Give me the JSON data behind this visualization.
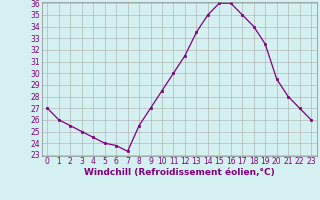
{
  "x": [
    0,
    1,
    2,
    3,
    4,
    5,
    6,
    7,
    8,
    9,
    10,
    11,
    12,
    13,
    14,
    15,
    16,
    17,
    18,
    19,
    20,
    21,
    22,
    23
  ],
  "y": [
    27.0,
    26.0,
    25.5,
    25.0,
    24.5,
    24.0,
    23.8,
    23.3,
    25.5,
    27.0,
    28.5,
    30.0,
    31.5,
    33.5,
    35.0,
    36.0,
    36.0,
    35.0,
    34.0,
    32.5,
    29.5,
    28.0,
    27.0,
    26.0
  ],
  "line_color": "#800080",
  "marker": "s",
  "marker_size": 2,
  "bg_color": "#d5f0f0",
  "grid_color": "#aaaaaa",
  "xlabel": "Windchill (Refroidissement éolien,°C)",
  "xlabel_color": "#800080",
  "tick_color": "#800080",
  "ylim": [
    23,
    36
  ],
  "xlim": [
    -0.5,
    23.5
  ],
  "yticks": [
    23,
    24,
    25,
    26,
    27,
    28,
    29,
    30,
    31,
    32,
    33,
    34,
    35,
    36
  ],
  "xticks": [
    0,
    1,
    2,
    3,
    4,
    5,
    6,
    7,
    8,
    9,
    10,
    11,
    12,
    13,
    14,
    15,
    16,
    17,
    18,
    19,
    20,
    21,
    22,
    23
  ],
  "tick_fontsize": 5.5,
  "xlabel_fontsize": 6.5
}
